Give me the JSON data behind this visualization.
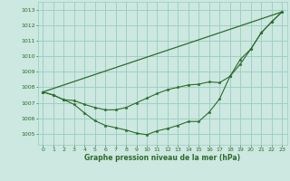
{
  "bg_color": "#cce8e0",
  "grid_color": "#99ccbf",
  "line_color": "#2d6b2d",
  "xlabel": "Graphe pression niveau de la mer (hPa)",
  "xlabel_color": "#2d6b2d",
  "ylim": [
    1004.3,
    1013.5
  ],
  "xlim": [
    -0.5,
    23.5
  ],
  "yticks": [
    1005,
    1006,
    1007,
    1008,
    1009,
    1010,
    1011,
    1012,
    1013
  ],
  "xticks": [
    0,
    1,
    2,
    3,
    4,
    5,
    6,
    7,
    8,
    9,
    10,
    11,
    12,
    13,
    14,
    15,
    16,
    17,
    18,
    19,
    20,
    21,
    22,
    23
  ],
  "line1_x": [
    0,
    23
  ],
  "line1_y": [
    1007.7,
    1012.85
  ],
  "line2_x": [
    0,
    1,
    2,
    3,
    4,
    5,
    6,
    7,
    8,
    9,
    10,
    11,
    12,
    13,
    14,
    15,
    16,
    17,
    18,
    19,
    20,
    21,
    22,
    23
  ],
  "line2_y": [
    1007.7,
    1007.5,
    1007.2,
    1007.15,
    1006.9,
    1006.7,
    1006.55,
    1006.55,
    1006.7,
    1007.0,
    1007.3,
    1007.6,
    1007.85,
    1008.0,
    1008.15,
    1008.2,
    1008.35,
    1008.3,
    1008.7,
    1009.5,
    1010.45,
    1011.5,
    1012.2,
    1012.85
  ],
  "line3_x": [
    0,
    1,
    2,
    3,
    4,
    5,
    6,
    7,
    8,
    9,
    10,
    11,
    12,
    13,
    14,
    15,
    16,
    17,
    18,
    19,
    20,
    21,
    22,
    23
  ],
  "line3_y": [
    1007.7,
    1007.5,
    1007.2,
    1006.9,
    1006.35,
    1005.85,
    1005.55,
    1005.4,
    1005.25,
    1005.05,
    1004.95,
    1005.2,
    1005.35,
    1005.55,
    1005.8,
    1005.8,
    1006.4,
    1007.25,
    1008.7,
    1009.8,
    1010.45,
    1011.5,
    1012.2,
    1012.85
  ]
}
